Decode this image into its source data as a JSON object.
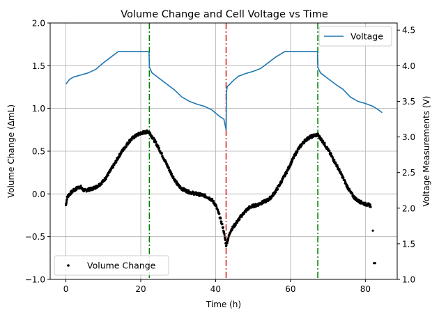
{
  "chart_data": {
    "type": "scatter+line",
    "title": "Volume Change and Cell Voltage vs Time",
    "xlabel": "Time (h)",
    "ylabel_left": "Volume Change (ΔmL)",
    "ylabel_right": "Voltage Measurements (V)",
    "xlim": [
      -4.2,
      88.5
    ],
    "ylim_left": [
      -1.0,
      2.0
    ],
    "ylim_right": [
      1.0,
      4.6
    ],
    "x_ticks": [
      0,
      20,
      40,
      60,
      80
    ],
    "y_left_ticks": [
      "−1.0",
      "−0.5",
      "0.0",
      "0.5",
      "1.0",
      "1.5",
      "2.0"
    ],
    "y_left_tick_values": [
      -1.0,
      -0.5,
      0.0,
      0.5,
      1.0,
      1.5,
      2.0
    ],
    "y_right_ticks": [
      "1.0",
      "1.5",
      "2.0",
      "2.5",
      "3.0",
      "3.5",
      "4.0",
      "4.5"
    ],
    "y_right_tick_values": [
      1.0,
      1.5,
      2.0,
      2.5,
      3.0,
      3.5,
      4.0,
      4.5
    ],
    "grid": true,
    "vlines": [
      {
        "x": 22.3,
        "color": "#008000"
      },
      {
        "x": 42.8,
        "color": "#d62728"
      },
      {
        "x": 67.3,
        "color": "#008000"
      }
    ],
    "series": [
      {
        "name": "Voltage",
        "kind": "line",
        "axis": "right",
        "color": "#1f77b4",
        "x": [
          0,
          1,
          2,
          4,
          6,
          8,
          10,
          12,
          14,
          16,
          18,
          20,
          22.2,
          22.3,
          23,
          25,
          27,
          29,
          31,
          33,
          35,
          37,
          39,
          41,
          42.2,
          42.4,
          42.8,
          42.9,
          43.1,
          43.6,
          44.5,
          46,
          48,
          50,
          52,
          54,
          56,
          58.5,
          60,
          62,
          64,
          66,
          67.2,
          67.3,
          68,
          70,
          72,
          74,
          76,
          78,
          80,
          82,
          83.5,
          84.5
        ],
        "y": [
          3.74,
          3.81,
          3.84,
          3.87,
          3.9,
          3.95,
          4.04,
          4.12,
          4.2,
          4.2,
          4.2,
          4.2,
          4.2,
          3.98,
          3.9,
          3.82,
          3.74,
          3.66,
          3.56,
          3.5,
          3.46,
          3.43,
          3.38,
          3.29,
          3.25,
          3.2,
          3.1,
          3.62,
          3.71,
          3.73,
          3.78,
          3.85,
          3.89,
          3.92,
          3.96,
          4.04,
          4.12,
          4.2,
          4.2,
          4.2,
          4.2,
          4.2,
          4.2,
          3.98,
          3.9,
          3.82,
          3.74,
          3.67,
          3.56,
          3.5,
          3.47,
          3.43,
          3.38,
          3.34
        ]
      },
      {
        "name": "Volume Change",
        "kind": "scatter",
        "axis": "left",
        "color": "#000000",
        "x": [
          0,
          0.3,
          0.6,
          1,
          1.5,
          2,
          2.5,
          3,
          3.5,
          4,
          4.5,
          5,
          6,
          7,
          8,
          9,
          10,
          11,
          12,
          13,
          14,
          15,
          16,
          17,
          18,
          19,
          20,
          21,
          22,
          22.3,
          23,
          24,
          25,
          26,
          27,
          28,
          29,
          30,
          31,
          32,
          33,
          34,
          35,
          36,
          37,
          38,
          39,
          40,
          41,
          42,
          42.8,
          43.5,
          44,
          45,
          46,
          47,
          48,
          49,
          50,
          51,
          52,
          53,
          54,
          55,
          56,
          57,
          58,
          59,
          60,
          61,
          62,
          63,
          64,
          65,
          66,
          67,
          67.3,
          68,
          69,
          70,
          71,
          72,
          73,
          74,
          75,
          76,
          77,
          78,
          79,
          80,
          81,
          81.5,
          82,
          82.3,
          82.6
        ],
        "y": [
          -0.13,
          -0.05,
          -0.02,
          0.0,
          0.02,
          0.04,
          0.05,
          0.07,
          0.08,
          0.08,
          0.05,
          0.04,
          0.05,
          0.06,
          0.08,
          0.11,
          0.15,
          0.21,
          0.28,
          0.35,
          0.43,
          0.5,
          0.56,
          0.62,
          0.66,
          0.69,
          0.71,
          0.72,
          0.73,
          0.72,
          0.67,
          0.6,
          0.52,
          0.43,
          0.34,
          0.25,
          0.17,
          0.1,
          0.06,
          0.04,
          0.02,
          0.01,
          0.0,
          -0.01,
          -0.02,
          -0.04,
          -0.07,
          -0.13,
          -0.25,
          -0.4,
          -0.6,
          -0.5,
          -0.43,
          -0.37,
          -0.31,
          -0.25,
          -0.2,
          -0.16,
          -0.14,
          -0.13,
          -0.11,
          -0.09,
          -0.07,
          -0.03,
          0.03,
          0.1,
          0.18,
          0.26,
          0.35,
          0.44,
          0.52,
          0.58,
          0.63,
          0.66,
          0.68,
          0.69,
          0.69,
          0.65,
          0.59,
          0.52,
          0.44,
          0.36,
          0.28,
          0.19,
          0.1,
          0.02,
          -0.04,
          -0.08,
          -0.1,
          -0.12,
          -0.13,
          -0.14,
          -0.16,
          -0.18,
          -0.2
        ],
        "outliers_x": [
          82.0,
          82.3,
          82.6
        ],
        "outliers_y": [
          -0.43,
          -0.81,
          -0.81
        ]
      }
    ],
    "legend_right": {
      "label": "Voltage",
      "position": "top-right"
    },
    "legend_left": {
      "label": "Volume Change",
      "position": "lower-left"
    }
  }
}
